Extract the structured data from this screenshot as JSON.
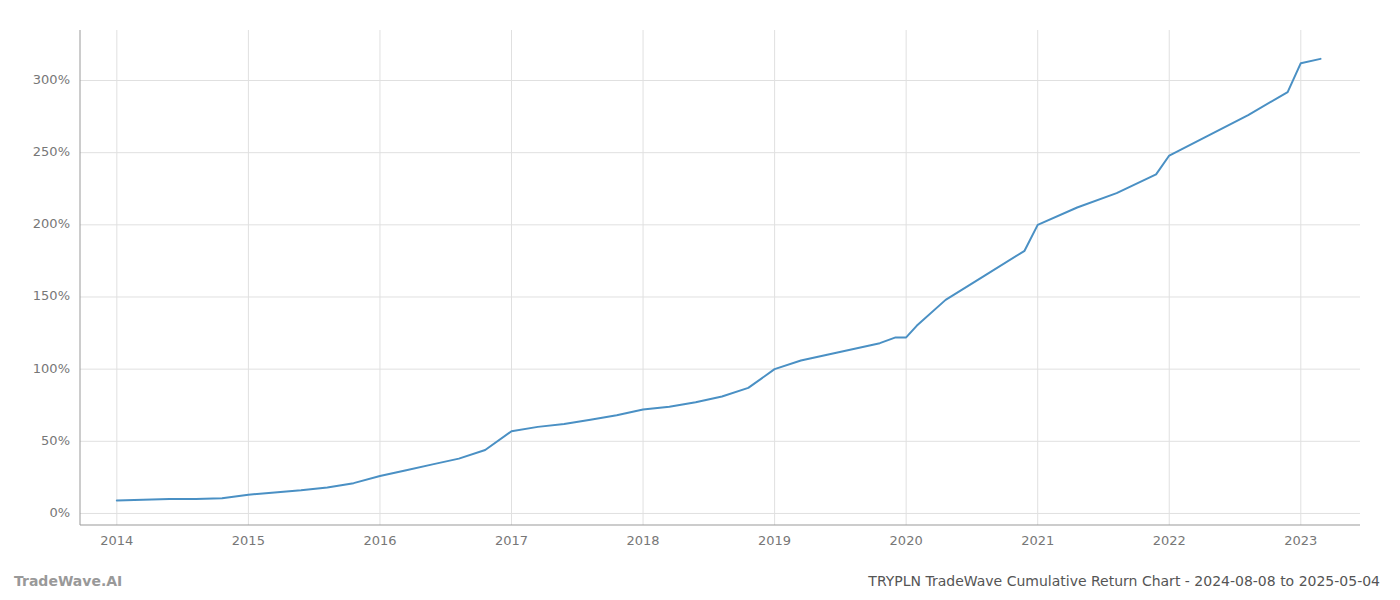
{
  "chart_data": {
    "type": "line",
    "title": "TRYPLN TradeWave Cumulative Return Chart - 2024-08-08 to 2025-05-04",
    "annotations": [
      "TradeWave.AI"
    ],
    "x": [
      2014.0,
      2014.2,
      2014.4,
      2014.6,
      2014.8,
      2015.0,
      2015.2,
      2015.4,
      2015.6,
      2015.8,
      2016.0,
      2016.2,
      2016.4,
      2016.6,
      2016.8,
      2017.0,
      2017.2,
      2017.4,
      2017.6,
      2017.8,
      2018.0,
      2018.2,
      2018.4,
      2018.6,
      2018.8,
      2019.0,
      2019.2,
      2019.4,
      2019.6,
      2019.8,
      2019.92,
      2020.0,
      2020.08,
      2020.3,
      2020.6,
      2020.9,
      2021.0,
      2021.3,
      2021.6,
      2021.9,
      2022.0,
      2022.3,
      2022.6,
      2022.9,
      2023.0,
      2023.15
    ],
    "values": [
      9,
      9.5,
      10,
      10,
      10.5,
      13,
      14.5,
      16,
      18,
      21,
      26,
      30,
      34,
      38,
      44,
      57,
      60,
      62,
      65,
      68,
      72,
      74,
      77,
      81,
      87,
      100,
      106,
      110,
      114,
      118,
      122,
      122,
      130,
      148,
      165,
      182,
      200,
      212,
      222,
      235,
      248,
      262,
      276,
      292,
      312,
      315
    ],
    "color": "#4a90c4",
    "xlim": [
      2013.72,
      2023.45
    ],
    "ylim": [
      -8,
      335
    ],
    "xticks": [
      2014,
      2015,
      2016,
      2017,
      2018,
      2019,
      2020,
      2021,
      2022,
      2023
    ],
    "yticks": [
      {
        "value": 0,
        "label": "0%"
      },
      {
        "value": 50,
        "label": "50%"
      },
      {
        "value": 100,
        "label": "100%"
      },
      {
        "value": 150,
        "label": "150%"
      },
      {
        "value": 200,
        "label": "200%"
      },
      {
        "value": 250,
        "label": "250%"
      },
      {
        "value": 300,
        "label": "300%"
      }
    ],
    "grid": true
  }
}
